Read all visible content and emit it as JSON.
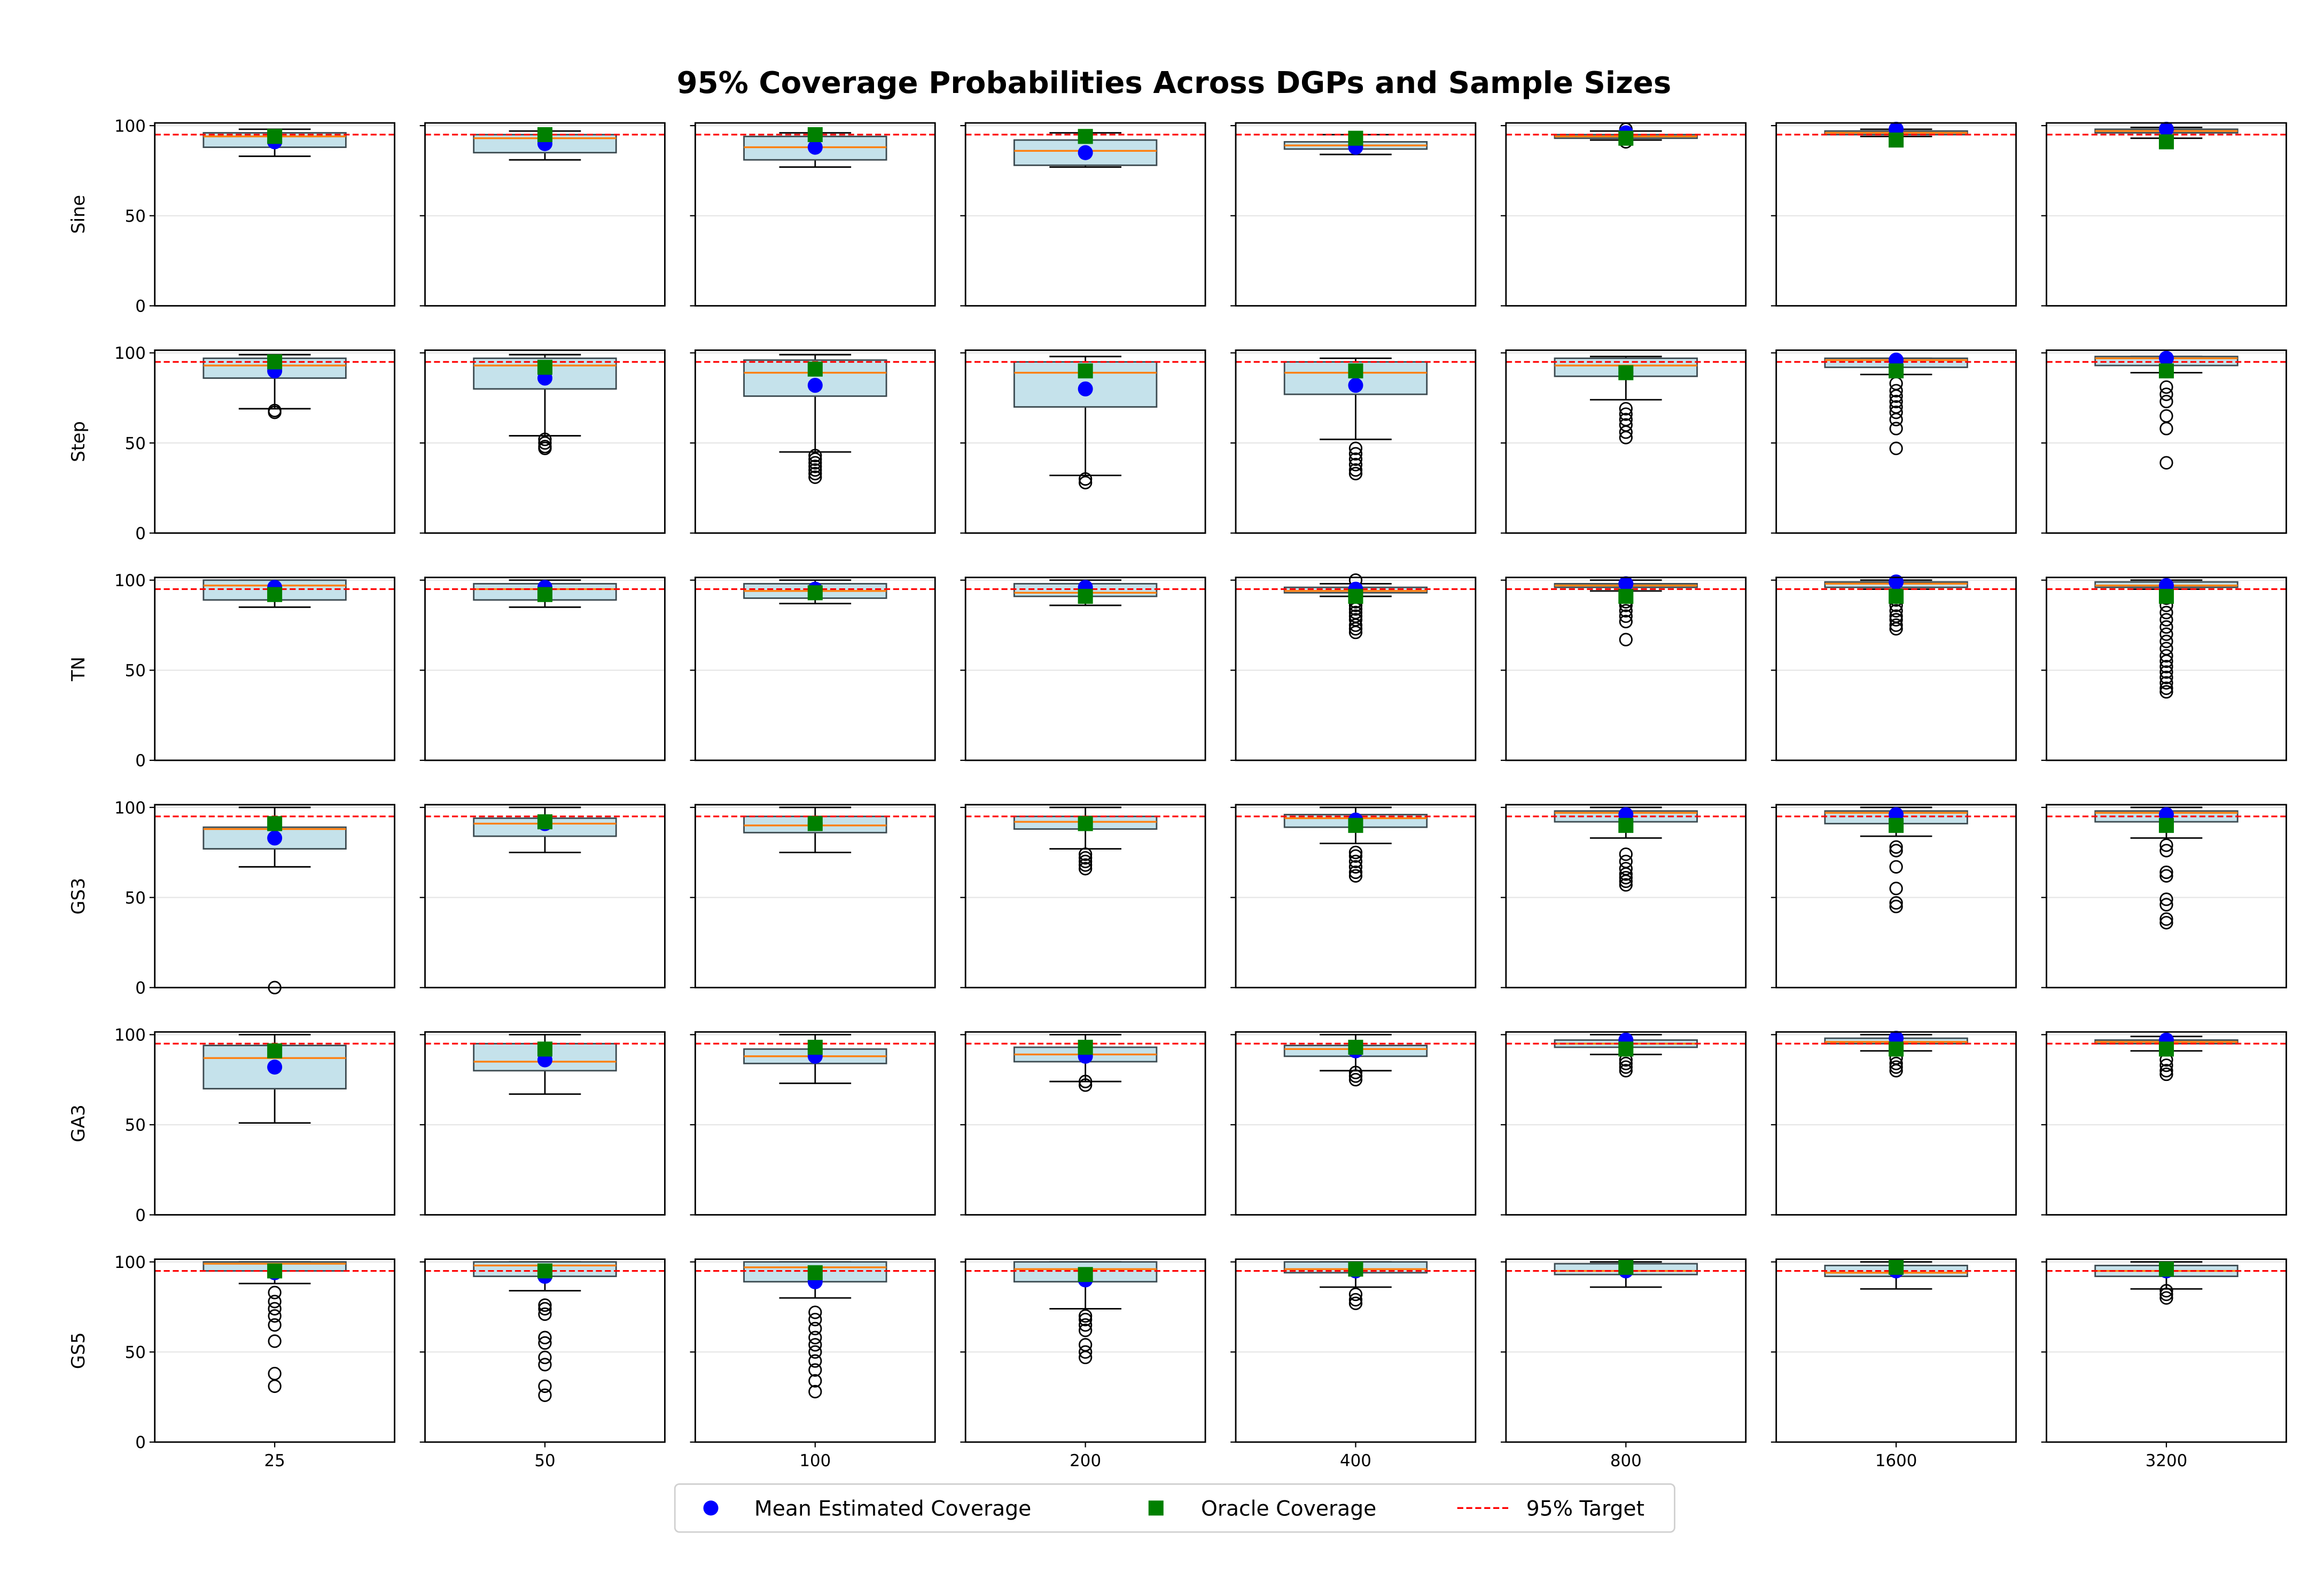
{
  "chart_data": {
    "type": "boxplot-grid",
    "title": "95% Coverage Probabilities Across DGPs and Sample Sizes",
    "rows": [
      "Sine",
      "Step",
      "TN",
      "GS3",
      "GA3",
      "GS5"
    ],
    "columns": [
      "25",
      "50",
      "100",
      "200",
      "400",
      "800",
      "1600",
      "3200"
    ],
    "ylim": [
      0,
      101.5
    ],
    "yticks": [
      "0",
      "50",
      "100"
    ],
    "ytick_values": [
      0,
      50,
      100
    ],
    "grid": "horizontal",
    "target": 95,
    "legend": {
      "placement": "bottom-center",
      "entries": [
        "Mean Estimated Coverage",
        "Oracle Coverage",
        "95% Target"
      ]
    },
    "colors": {
      "box_fill": "#c5e2eb",
      "box_edge": "#3c4a50",
      "median": "#ff7f0e",
      "mean": "#0000ff",
      "oracle": "#008000",
      "target": "#ff0000",
      "grid": "#e6e6e6"
    },
    "box_fields": [
      "whisker_low",
      "q1",
      "median",
      "q3",
      "whisker_high",
      "mean",
      "oracle",
      "outliers"
    ],
    "data": [
      [
        [
          83,
          88,
          94,
          96,
          98,
          91,
          94,
          []
        ],
        [
          81,
          85,
          93,
          95,
          97,
          90,
          95,
          []
        ],
        [
          77,
          81,
          88,
          94,
          96,
          88,
          95,
          []
        ],
        [
          77,
          78,
          86,
          92,
          96,
          85,
          94,
          []
        ],
        [
          84,
          87,
          89,
          91,
          95,
          88,
          93,
          []
        ],
        [
          92,
          93,
          94,
          95,
          97,
          96,
          93,
          [
            91,
            98
          ]
        ],
        [
          94,
          95,
          96,
          97,
          98,
          98,
          92,
          [
            92
          ]
        ],
        [
          93,
          96,
          97,
          98,
          99,
          98,
          91,
          [
            91
          ]
        ]
      ],
      [
        [
          69,
          86,
          93,
          97,
          99,
          90,
          95,
          [
            67,
            68
          ]
        ],
        [
          54,
          80,
          93,
          97,
          99,
          86,
          92,
          [
            47,
            48,
            50,
            52
          ]
        ],
        [
          45,
          76,
          89,
          96,
          99,
          82,
          91,
          [
            31,
            33,
            35,
            37,
            39,
            41,
            43
          ]
        ],
        [
          32,
          70,
          89,
          95,
          98,
          80,
          90,
          [
            28,
            30
          ]
        ],
        [
          52,
          77,
          89,
          95,
          97,
          82,
          90,
          [
            33,
            35,
            38,
            41,
            44,
            47
          ]
        ],
        [
          74,
          87,
          93,
          97,
          98,
          89,
          89,
          [
            53,
            56,
            60,
            63,
            66,
            69
          ]
        ],
        [
          88,
          92,
          96,
          97,
          97,
          96,
          90,
          [
            47,
            58,
            63,
            67,
            70,
            73,
            76,
            79,
            83
          ]
        ],
        [
          89,
          93,
          97,
          98,
          98,
          97,
          90,
          [
            39,
            58,
            65,
            73,
            77,
            81
          ]
        ]
      ],
      [
        [
          85,
          89,
          97,
          100,
          100,
          96,
          92,
          []
        ],
        [
          85,
          89,
          95,
          98,
          100,
          96,
          92,
          []
        ],
        [
          87,
          90,
          94,
          98,
          100,
          95,
          93,
          []
        ],
        [
          86,
          91,
          93,
          98,
          100,
          96,
          91,
          []
        ],
        [
          91,
          93,
          94,
          96,
          98,
          95,
          91,
          [
            71,
            73,
            75,
            78,
            80,
            82,
            84,
            86,
            88,
            100
          ]
        ],
        [
          94,
          96,
          97,
          98,
          100,
          98,
          91,
          [
            67,
            77,
            80,
            83,
            86,
            88,
            92
          ]
        ],
        [
          95,
          96,
          98,
          99,
          100,
          99,
          91,
          [
            73,
            75,
            78,
            80,
            83,
            86,
            89,
            92
          ]
        ],
        [
          95,
          96,
          97,
          99,
          100,
          97,
          91,
          [
            38,
            40,
            43,
            46,
            49,
            52,
            55,
            58,
            62,
            66,
            70,
            74,
            78,
            82,
            86,
            90,
            92
          ]
        ]
      ],
      [
        [
          67,
          77,
          88,
          89,
          100,
          83,
          91,
          [
            0
          ]
        ],
        [
          75,
          84,
          91,
          94,
          100,
          91,
          92,
          []
        ],
        [
          75,
          86,
          90,
          95,
          100,
          91,
          91,
          []
        ],
        [
          77,
          88,
          92,
          95,
          100,
          91,
          91,
          [
            66,
            68,
            70,
            72,
            74
          ]
        ],
        [
          80,
          89,
          94,
          96,
          100,
          93,
          90,
          [
            62,
            64,
            67,
            70,
            73,
            75
          ]
        ],
        [
          83,
          92,
          97,
          98,
          100,
          96,
          90,
          [
            57,
            59,
            61,
            63,
            66,
            70,
            74
          ]
        ],
        [
          84,
          91,
          97,
          98,
          100,
          96,
          90,
          [
            45,
            47,
            55,
            67,
            76,
            78
          ]
        ],
        [
          83,
          92,
          97,
          98,
          100,
          96,
          90,
          [
            36,
            38,
            46,
            49,
            62,
            64,
            76,
            79
          ]
        ]
      ],
      [
        [
          51,
          70,
          87,
          94,
          100,
          82,
          91,
          []
        ],
        [
          67,
          80,
          85,
          95,
          100,
          86,
          92,
          []
        ],
        [
          73,
          84,
          88,
          92,
          100,
          88,
          93,
          []
        ],
        [
          74,
          85,
          89,
          93,
          100,
          88,
          93,
          [
            72,
            74
          ]
        ],
        [
          80,
          88,
          92,
          94,
          100,
          91,
          93,
          [
            75,
            77,
            79
          ]
        ],
        [
          89,
          93,
          95,
          97,
          100,
          97,
          92,
          [
            80,
            82,
            84,
            86
          ]
        ],
        [
          91,
          95,
          96,
          98,
          100,
          98,
          92,
          [
            80,
            82,
            84,
            87
          ]
        ],
        [
          91,
          95,
          96,
          97,
          99,
          97,
          92,
          [
            78,
            80,
            83,
            86
          ]
        ]
      ],
      [
        [
          88,
          95,
          99,
          100,
          100,
          94,
          95,
          [
            31,
            38,
            56,
            65,
            70,
            74,
            78,
            83
          ]
        ],
        [
          84,
          92,
          98,
          100,
          100,
          92,
          95,
          [
            26,
            31,
            43,
            47,
            55,
            58,
            71,
            74,
            76
          ]
        ],
        [
          80,
          89,
          97,
          100,
          100,
          89,
          94,
          [
            28,
            34,
            40,
            45,
            50,
            54,
            58,
            63,
            68,
            72
          ]
        ],
        [
          74,
          89,
          96,
          100,
          100,
          90,
          93,
          [
            47,
            50,
            54,
            62,
            65,
            68,
            70
          ]
        ],
        [
          86,
          94,
          96,
          100,
          100,
          95,
          96,
          [
            77,
            79,
            82
          ]
        ],
        [
          86,
          93,
          95,
          99,
          100,
          95,
          97,
          []
        ],
        [
          85,
          92,
          94,
          98,
          100,
          95,
          97,
          []
        ],
        [
          85,
          92,
          95,
          98,
          100,
          95,
          96,
          [
            80,
            82,
            84
          ]
        ]
      ]
    ]
  }
}
